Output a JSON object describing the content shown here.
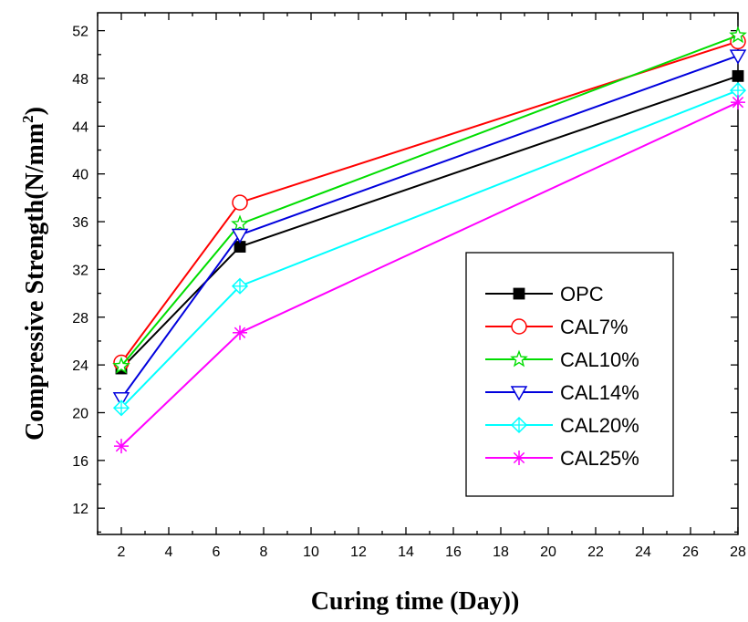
{
  "chart_data": {
    "type": "line",
    "xlabel": "Curing time (Day))",
    "ylabel": "Compressive Strength(N/mm",
    "ylabel_sup": "2",
    "ylabel_close": ")",
    "xlim": [
      1,
      28
    ],
    "ylim": [
      9.8,
      53.5
    ],
    "x_ticks": [
      2,
      4,
      6,
      8,
      10,
      12,
      14,
      16,
      18,
      20,
      22,
      24,
      26,
      28
    ],
    "y_ticks": [
      12,
      16,
      20,
      24,
      28,
      32,
      36,
      40,
      44,
      48,
      52
    ],
    "x": [
      2,
      7,
      28
    ],
    "grid": false,
    "legend_position": "right-center",
    "series": [
      {
        "name": "OPC",
        "values": [
          23.7,
          33.9,
          48.2
        ],
        "color": "#000000",
        "marker": "square-filled"
      },
      {
        "name": "CAL7%",
        "values": [
          24.2,
          37.6,
          51.1
        ],
        "color": "#ff0000",
        "marker": "circle-open"
      },
      {
        "name": "CAL10%",
        "values": [
          23.9,
          35.8,
          51.6
        ],
        "color": "#00dd00",
        "marker": "star-open"
      },
      {
        "name": "CAL14%",
        "values": [
          21.2,
          34.9,
          49.9
        ],
        "color": "#0000dd",
        "marker": "triangle-down-open"
      },
      {
        "name": "CAL20%",
        "values": [
          20.4,
          30.6,
          47.0
        ],
        "color": "#00ffff",
        "marker": "diamond-crossed"
      },
      {
        "name": "CAL25%",
        "values": [
          17.2,
          26.7,
          46.0
        ],
        "color": "#ff00ff",
        "marker": "asterisk"
      }
    ]
  }
}
